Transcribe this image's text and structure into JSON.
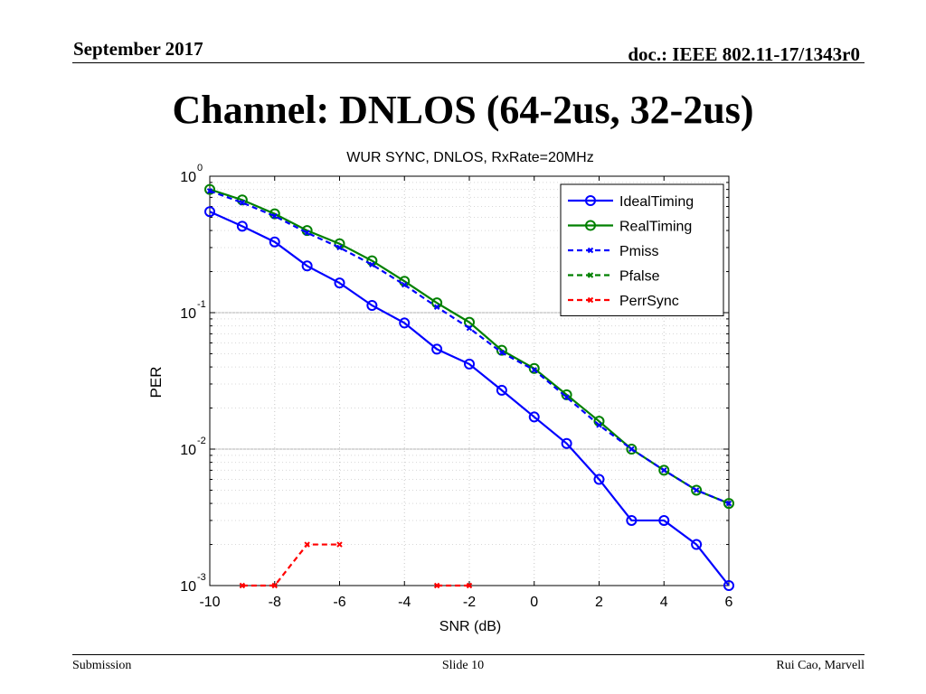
{
  "header": {
    "date": "September 2017",
    "doc": "doc.: IEEE 802.11-17/1343r0"
  },
  "slide_title": "Channel: DNLOS (64-2us, 32-2us)",
  "footer": {
    "left": "Submission",
    "center": "Slide 10",
    "right": "Rui Cao, Marvell"
  },
  "chart_data": {
    "type": "line",
    "title": "WUR SYNC, DNLOS, RxRate=20MHz",
    "xlabel": "SNR (dB)",
    "ylabel": "PER",
    "xlim": [
      -10,
      6
    ],
    "ylim": [
      0.001,
      1
    ],
    "yscale": "log",
    "xticks": [
      -10,
      -8,
      -6,
      -4,
      -2,
      0,
      2,
      4,
      6
    ],
    "yticks": [
      {
        "value": 1,
        "base": "10",
        "exp": "0"
      },
      {
        "value": 0.1,
        "base": "10",
        "exp": "-1"
      },
      {
        "value": 0.01,
        "base": "10",
        "exp": "-2"
      },
      {
        "value": 0.001,
        "base": "10",
        "exp": "-3"
      }
    ],
    "grid": true,
    "legend_position": "top-right",
    "series": [
      {
        "name": "IdealTiming",
        "color": "#0000ff",
        "dash": "solid",
        "marker": "circle",
        "points": [
          [
            -10,
            0.55
          ],
          [
            -9,
            0.43
          ],
          [
            -8,
            0.33
          ],
          [
            -7,
            0.22
          ],
          [
            -6,
            0.165
          ],
          [
            -5,
            0.113
          ],
          [
            -4,
            0.084
          ],
          [
            -3,
            0.054
          ],
          [
            -2,
            0.042
          ],
          [
            -1,
            0.027
          ],
          [
            0,
            0.0172
          ],
          [
            1,
            0.011
          ],
          [
            2,
            0.006
          ],
          [
            3,
            0.003
          ],
          [
            4,
            0.003
          ],
          [
            5,
            0.002
          ],
          [
            6,
            0.001
          ]
        ]
      },
      {
        "name": "RealTiming",
        "color": "#008000",
        "dash": "solid",
        "marker": "circle",
        "points": [
          [
            -10,
            0.8
          ],
          [
            -9,
            0.67
          ],
          [
            -8,
            0.53
          ],
          [
            -7,
            0.4
          ],
          [
            -6,
            0.32
          ],
          [
            -5,
            0.24
          ],
          [
            -4,
            0.17
          ],
          [
            -3,
            0.118
          ],
          [
            -2,
            0.085
          ],
          [
            -1,
            0.053
          ],
          [
            0,
            0.039
          ],
          [
            1,
            0.025
          ],
          [
            2,
            0.016
          ],
          [
            3,
            0.01
          ],
          [
            4,
            0.007
          ],
          [
            5,
            0.005
          ],
          [
            6,
            0.004
          ]
        ]
      },
      {
        "name": "Pmiss",
        "color": "#0000ff",
        "dash": "dashed",
        "marker": "x",
        "points": [
          [
            -10,
            0.78
          ],
          [
            -9,
            0.64
          ],
          [
            -8,
            0.51
          ],
          [
            -7,
            0.385
          ],
          [
            -6,
            0.3
          ],
          [
            -5,
            0.225
          ],
          [
            -4,
            0.16
          ],
          [
            -3,
            0.11
          ],
          [
            -2,
            0.077
          ],
          [
            -1,
            0.051
          ],
          [
            0,
            0.038
          ],
          [
            1,
            0.024
          ],
          [
            2,
            0.015
          ],
          [
            3,
            0.01
          ],
          [
            4,
            0.007
          ],
          [
            5,
            0.005
          ],
          [
            6,
            0.004
          ]
        ]
      },
      {
        "name": "Pfalse",
        "color": "#008000",
        "dash": "dashed",
        "marker": "x",
        "points": []
      },
      {
        "name": "PerrSync",
        "color": "#ff0000",
        "dash": "dashed",
        "marker": "x",
        "segments": [
          [
            [
              -9,
              0.001
            ],
            [
              -8,
              0.001
            ],
            [
              -7,
              0.002
            ],
            [
              -6,
              0.002
            ]
          ],
          [
            [
              -3,
              0.001
            ],
            [
              -2,
              0.001
            ]
          ]
        ]
      }
    ]
  }
}
